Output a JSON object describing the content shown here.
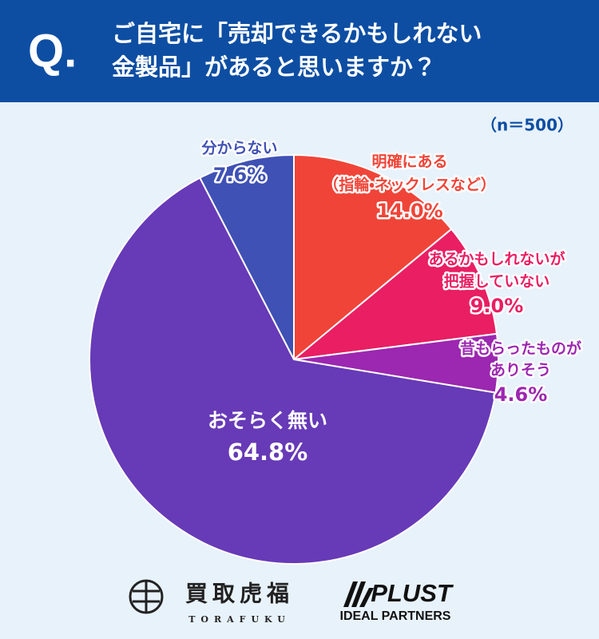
{
  "header": {
    "mark": "Q.",
    "question": [
      "ご自宅に「売却できるかもしれない",
      "金製品」があると思いますか？"
    ]
  },
  "chart_data": {
    "type": "pie",
    "sample_size": "（n＝500）",
    "categories": [
      [
        "明確にある",
        "（指輪・ネックレスなど）"
      ],
      [
        "あるかもしれないが",
        "把握していない"
      ],
      [
        "昔もらったものが",
        "ありそう"
      ],
      [
        "おそらく無い"
      ],
      [
        "分からない"
      ]
    ],
    "values": [
      14.0,
      9.0,
      4.6,
      64.8,
      7.6
    ],
    "value_labels": [
      "14.0%",
      "9.0%",
      "4.6%",
      "64.8%",
      "7.6%"
    ],
    "colors": [
      "#f04438",
      "#e91e63",
      "#9c27b0",
      "#673ab7",
      "#3f51b5"
    ]
  },
  "footer": {
    "logo1": "買取虎福",
    "logo1_sub": "TORAFUKU",
    "logo2": "PLUST",
    "logo2_sub": "IDEAL PARTNERS"
  }
}
